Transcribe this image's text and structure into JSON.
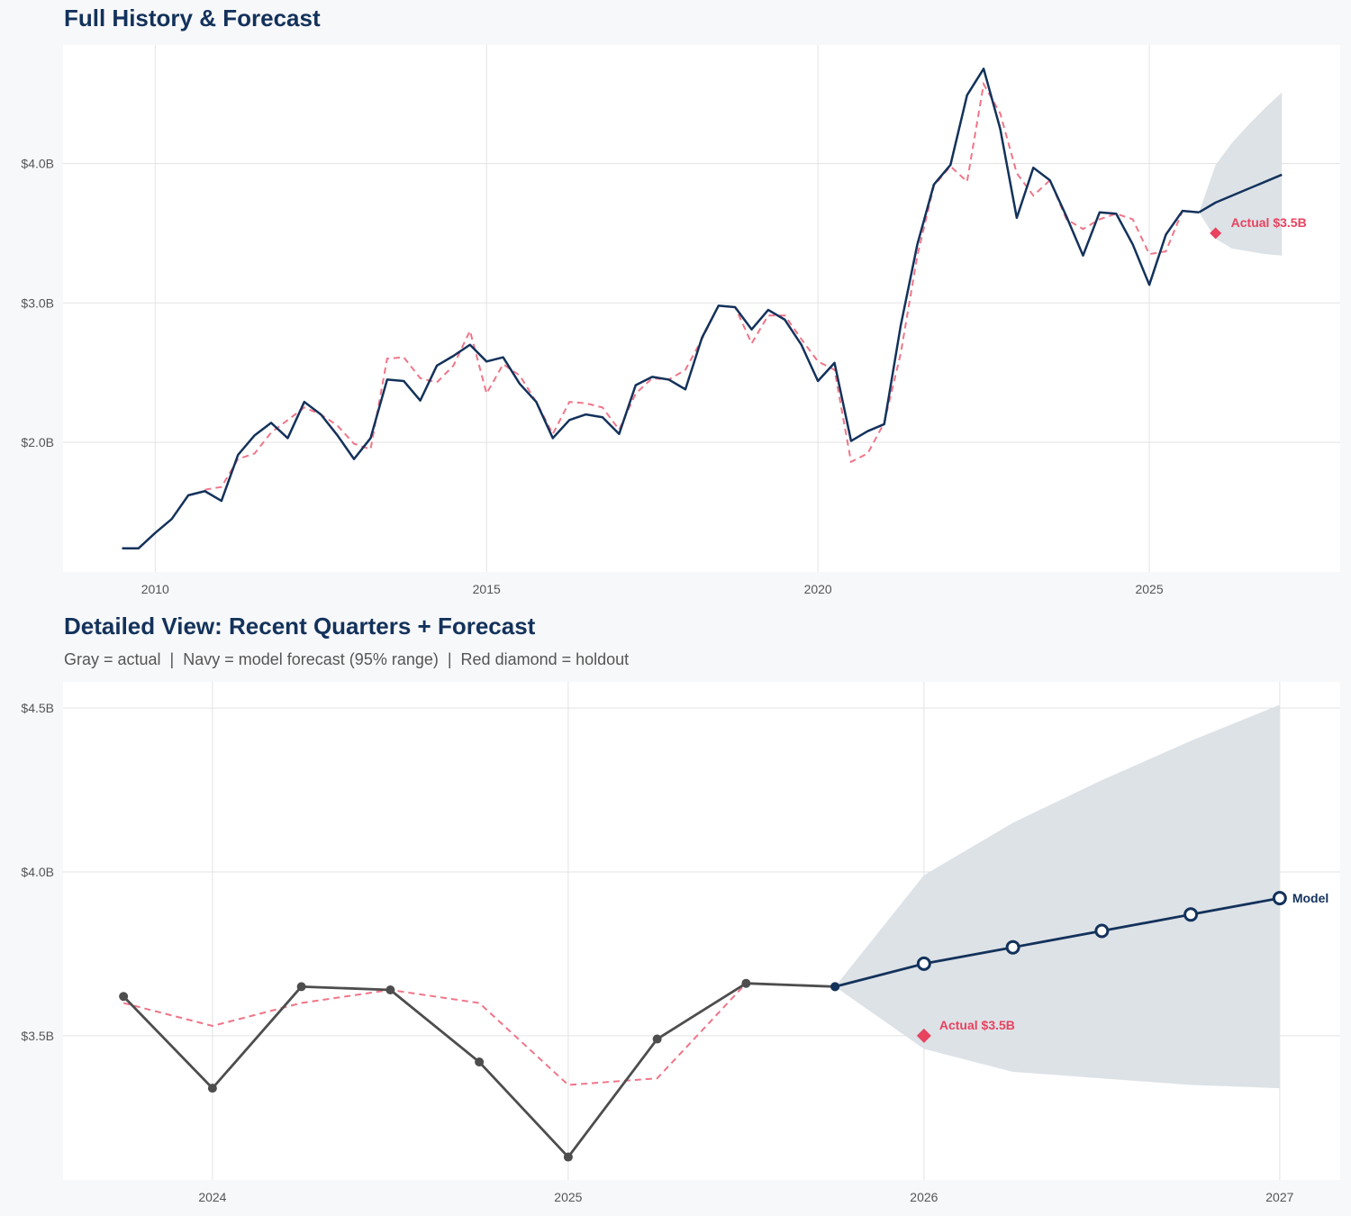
{
  "colors": {
    "navy": "#13325b",
    "red": "#e8435f",
    "dashed": "#f07588",
    "gray": "#4d4d4d",
    "band": "#dbe0e6",
    "grid": "#e3e3e3",
    "panel": "#ffffff"
  },
  "titles": {
    "top": "Full History & Forecast",
    "bottom": "Detailed View: Recent Quarters + Forecast",
    "bottom_subtitle": "Gray = actual  |  Navy = model forecast (95% range)  |  Red diamond = holdout"
  },
  "chart_data": [
    {
      "type": "line",
      "title": "Full History & Forecast",
      "xlim": [
        2008.61,
        2027.88
      ],
      "ylim": [
        1.07,
        4.85
      ],
      "grid": true,
      "x_ticks": [
        {
          "value": 2010,
          "label": "2010"
        },
        {
          "value": 2015,
          "label": "2015"
        },
        {
          "value": 2020,
          "label": "2020"
        },
        {
          "value": 2025,
          "label": "2025"
        }
      ],
      "y_ticks": [
        {
          "value": 2.0,
          "label": "$2.0B"
        },
        {
          "value": 3.0,
          "label": "$3.0B"
        },
        {
          "value": 4.0,
          "label": "$4.0B"
        }
      ],
      "history": {
        "dates": [
          "2009-07",
          "2009-10",
          "2010-01",
          "2010-04",
          "2010-07",
          "2010-10",
          "2011-01",
          "2011-04",
          "2011-07",
          "2011-10",
          "2012-01",
          "2012-04",
          "2012-07",
          "2012-10",
          "2013-01",
          "2013-04",
          "2013-07",
          "2013-10",
          "2014-01",
          "2014-04",
          "2014-07",
          "2014-10",
          "2015-01",
          "2015-04",
          "2015-07",
          "2015-10",
          "2016-01",
          "2016-04",
          "2016-07",
          "2016-10",
          "2017-01",
          "2017-04",
          "2017-07",
          "2017-10",
          "2018-01",
          "2018-04",
          "2018-07",
          "2018-10",
          "2019-01",
          "2019-04",
          "2019-07",
          "2019-10",
          "2020-01",
          "2020-04",
          "2020-07",
          "2020-10",
          "2021-01",
          "2021-04",
          "2021-07",
          "2021-10",
          "2022-01",
          "2022-04",
          "2022-07",
          "2022-10",
          "2023-01",
          "2023-04",
          "2023-07",
          "2023-10",
          "2024-01",
          "2024-04",
          "2024-07",
          "2024-10",
          "2025-01",
          "2025-04",
          "2025-07",
          "2025-10"
        ],
        "actual": [
          1.24,
          1.24,
          1.35,
          1.45,
          1.62,
          1.65,
          1.58,
          1.91,
          2.05,
          2.14,
          2.03,
          2.29,
          2.2,
          2.05,
          1.88,
          2.03,
          2.45,
          2.44,
          2.3,
          2.55,
          2.62,
          2.7,
          2.58,
          2.61,
          2.42,
          2.29,
          2.03,
          2.16,
          2.2,
          2.18,
          2.06,
          2.41,
          2.47,
          2.45,
          2.38,
          2.75,
          2.98,
          2.97,
          2.81,
          2.95,
          2.88,
          2.7,
          2.44,
          2.57,
          2.01,
          2.08,
          2.13,
          2.84,
          3.42,
          3.85,
          3.99,
          4.49,
          4.68,
          4.25,
          3.61,
          3.97,
          3.88,
          3.62,
          3.34,
          3.65,
          3.64,
          3.42,
          3.13,
          3.49,
          3.66,
          3.65
        ],
        "fitted": [
          null,
          null,
          null,
          null,
          null,
          1.66,
          1.68,
          1.88,
          1.92,
          2.07,
          2.16,
          2.25,
          2.2,
          2.12,
          1.99,
          1.95,
          2.6,
          2.61,
          2.46,
          2.43,
          2.55,
          2.8,
          2.35,
          2.56,
          2.48,
          2.29,
          2.06,
          2.29,
          2.28,
          2.25,
          2.09,
          2.35,
          2.46,
          2.45,
          2.52,
          2.74,
          2.98,
          2.97,
          2.71,
          2.91,
          2.91,
          2.74,
          2.58,
          2.52,
          1.86,
          1.92,
          2.14,
          2.64,
          3.34,
          3.84,
          3.98,
          3.87,
          4.57,
          4.36,
          3.93,
          3.77,
          3.88,
          3.6,
          3.53,
          3.6,
          3.64,
          3.6,
          3.35,
          3.37,
          3.66,
          3.65
        ]
      },
      "forecast": {
        "dates": [
          "2025-10",
          "2026-01",
          "2026-04",
          "2026-07",
          "2026-10",
          "2027-01"
        ],
        "mean": [
          3.65,
          3.72,
          3.77,
          3.82,
          3.87,
          3.92
        ],
        "lower": [
          3.65,
          3.46,
          3.39,
          3.37,
          3.35,
          3.34
        ],
        "upper": [
          3.65,
          3.99,
          4.15,
          4.28,
          4.4,
          4.51
        ]
      },
      "holdout": {
        "date": "2026-01",
        "value": 3.5,
        "label": "Actual $3.5B"
      }
    },
    {
      "type": "line",
      "title": "Detailed View: Recent Quarters + Forecast",
      "subtitle": "Gray = actual  |  Navy = model forecast (95% range)  |  Red diamond = holdout",
      "xlim": [
        2023.58,
        2027.17
      ],
      "ylim": [
        3.06,
        4.58
      ],
      "grid": true,
      "x_ticks": [
        {
          "value": 2024,
          "label": "2024"
        },
        {
          "value": 2025,
          "label": "2025"
        },
        {
          "value": 2026,
          "label": "2026"
        },
        {
          "value": 2027,
          "label": "2027"
        }
      ],
      "y_ticks": [
        {
          "value": 3.5,
          "label": "$3.5B"
        },
        {
          "value": 4.0,
          "label": "$4.0B"
        },
        {
          "value": 4.5,
          "label": "$4.5B"
        }
      ],
      "history": {
        "dates": [
          "2023-10",
          "2024-01",
          "2024-04",
          "2024-07",
          "2024-10",
          "2025-01",
          "2025-04",
          "2025-07",
          "2025-10"
        ],
        "actual": [
          3.62,
          3.34,
          3.65,
          3.64,
          3.42,
          3.13,
          3.49,
          3.66,
          3.65
        ],
        "fitted": [
          3.6,
          3.53,
          3.6,
          3.64,
          3.6,
          3.35,
          3.37,
          3.66,
          3.65
        ]
      },
      "forecast": {
        "dates": [
          "2025-10",
          "2026-01",
          "2026-04",
          "2026-07",
          "2026-10",
          "2027-01"
        ],
        "mean": [
          3.65,
          3.72,
          3.77,
          3.82,
          3.87,
          3.92
        ],
        "lower": [
          3.65,
          3.46,
          3.39,
          3.37,
          3.35,
          3.34
        ],
        "upper": [
          3.65,
          3.99,
          4.15,
          4.28,
          4.4,
          4.51
        ],
        "label": "Model"
      },
      "holdout": {
        "date": "2026-01",
        "value": 3.5,
        "label": "Actual $3.5B"
      }
    }
  ]
}
